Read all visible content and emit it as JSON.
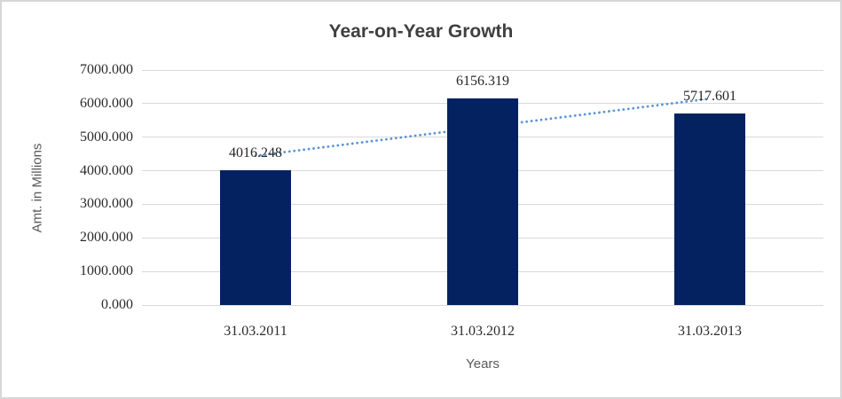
{
  "chart_data": {
    "type": "bar",
    "title": "Year-on-Year Growth",
    "xlabel": "Years",
    "ylabel": "Amt. in Millions",
    "categories": [
      "31.03.2011",
      "31.03.2012",
      "31.03.2013"
    ],
    "values": [
      4016.248,
      6156.319,
      5717.601
    ],
    "data_labels": [
      "4016.248",
      "6156.319",
      "5717.601"
    ],
    "ylim": [
      0,
      7000
    ],
    "ytick_step": 1000,
    "ytick_labels": [
      "0.000",
      "1000.000",
      "2000.000",
      "3000.000",
      "4000.000",
      "5000.000",
      "6000.000",
      "7000.000"
    ],
    "grid": true,
    "legend": false,
    "trendline": {
      "style": "dotted",
      "fitted_values": [
        4446.0,
        5296.7,
        6147.4
      ]
    },
    "colors": {
      "bar": "#042160",
      "trendline": "#5b93d5",
      "gridline": "#d9d9d9",
      "title_text": "#3f3f3f",
      "axis_title_text": "#595959",
      "number_text": "#262626",
      "frame_border": "#d7d7d7"
    }
  }
}
